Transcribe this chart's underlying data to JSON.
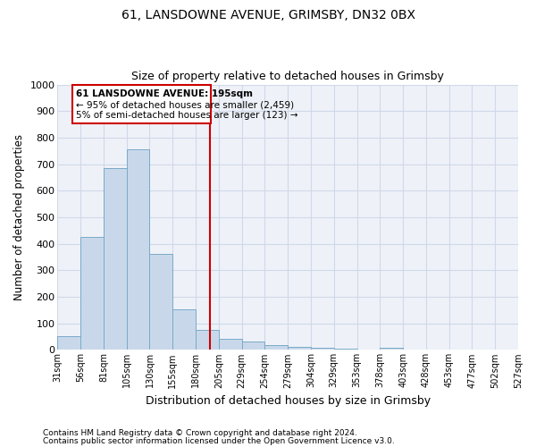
{
  "title1": "61, LANSDOWNE AVENUE, GRIMSBY, DN32 0BX",
  "title2": "Size of property relative to detached houses in Grimsby",
  "xlabel": "Distribution of detached houses by size in Grimsby",
  "ylabel": "Number of detached properties",
  "bins": [
    "31sqm",
    "56sqm",
    "81sqm",
    "105sqm",
    "130sqm",
    "155sqm",
    "180sqm",
    "205sqm",
    "229sqm",
    "254sqm",
    "279sqm",
    "304sqm",
    "329sqm",
    "353sqm",
    "378sqm",
    "403sqm",
    "428sqm",
    "453sqm",
    "477sqm",
    "502sqm",
    "527sqm"
  ],
  "values": [
    52,
    425,
    685,
    755,
    362,
    153,
    75,
    42,
    30,
    18,
    12,
    8,
    3,
    0,
    8,
    0,
    0,
    0,
    0,
    0
  ],
  "bar_color": "#c8d8ea",
  "bar_edge_color": "#7aaac8",
  "vline_color": "#cc0000",
  "annotation_title": "61 LANSDOWNE AVENUE: 195sqm",
  "annotation_line1": "← 95% of detached houses are smaller (2,459)",
  "annotation_line2": "5% of semi-detached houses are larger (123) →",
  "annotation_box_color": "#cc0000",
  "ylim": [
    0,
    1000
  ],
  "yticks": [
    0,
    100,
    200,
    300,
    400,
    500,
    600,
    700,
    800,
    900,
    1000
  ],
  "bg_color": "#eef2f8",
  "grid_color": "#d0d8e8",
  "footnote1": "Contains HM Land Registry data © Crown copyright and database right 2024.",
  "footnote2": "Contains public sector information licensed under the Open Government Licence v3.0."
}
